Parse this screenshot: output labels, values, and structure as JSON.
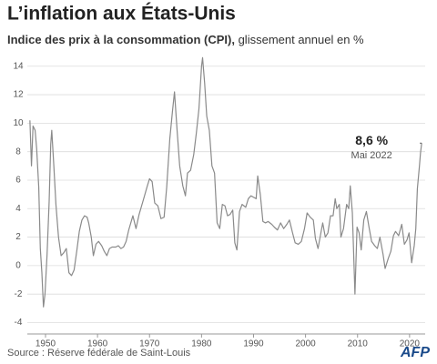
{
  "chart_data": {
    "type": "line",
    "title": "L’inflation aux États-Unis",
    "subtitle_bold": "Indice des prix à la consommation (CPI),",
    "subtitle": "glissement annuel en %",
    "source": "Source : Réserve fédérale de Saint-Louis",
    "logo": "AFP",
    "x": [
      1947.0,
      1947.3,
      1947.6,
      1948.0,
      1948.3,
      1948.7,
      1949.0,
      1949.3,
      1949.6,
      1949.9,
      1950.3,
      1950.7,
      1951.0,
      1951.2,
      1951.6,
      1952.0,
      1952.5,
      1953.0,
      1953.5,
      1954.0,
      1954.5,
      1955.0,
      1955.5,
      1956.0,
      1956.5,
      1957.0,
      1957.5,
      1958.0,
      1958.3,
      1958.8,
      1959.2,
      1959.7,
      1960.2,
      1960.8,
      1961.3,
      1961.8,
      1962.3,
      1962.8,
      1963.5,
      1964.0,
      1964.5,
      1965.0,
      1965.5,
      1966.0,
      1966.8,
      1967.4,
      1968.0,
      1968.8,
      1969.5,
      1970.0,
      1970.5,
      1971.0,
      1971.6,
      1972.2,
      1972.8,
      1973.3,
      1973.9,
      1974.4,
      1974.8,
      1975.3,
      1975.8,
      1976.4,
      1976.9,
      1977.3,
      1977.9,
      1978.5,
      1979.0,
      1979.5,
      1980.0,
      1980.2,
      1980.6,
      1981.0,
      1981.5,
      1982.0,
      1982.5,
      1983.0,
      1983.5,
      1984.0,
      1984.5,
      1985.0,
      1985.5,
      1986.0,
      1986.4,
      1986.8,
      1987.3,
      1987.8,
      1988.5,
      1989.0,
      1989.5,
      1990.0,
      1990.5,
      1990.8,
      1991.3,
      1991.8,
      1992.3,
      1992.8,
      1993.5,
      1994.0,
      1994.6,
      1995.2,
      1995.8,
      1996.4,
      1996.9,
      1997.5,
      1998.0,
      1998.6,
      1999.2,
      1999.8,
      2000.3,
      2000.9,
      2001.5,
      2001.9,
      2002.4,
      2002.9,
      2003.3,
      2003.8,
      2004.3,
      2004.8,
      2005.3,
      2005.7,
      2006.0,
      2006.5,
      2006.8,
      2007.3,
      2007.9,
      2008.3,
      2008.6,
      2009.0,
      2009.5,
      2009.9,
      2010.3,
      2010.7,
      2011.2,
      2011.7,
      2012.2,
      2012.7,
      2013.3,
      2013.8,
      2014.3,
      2014.9,
      2015.3,
      2015.9,
      2016.4,
      2016.9,
      2017.3,
      2017.9,
      2018.5,
      2019.0,
      2019.5,
      2019.9,
      2020.4,
      2020.9,
      2021.2,
      2021.5,
      2021.9,
      2022.1,
      2022.33
    ],
    "series": [
      {
        "name": "CPI",
        "color": "#8a8a8a",
        "values": [
          10.2,
          7.0,
          9.8,
          9.5,
          8.2,
          5.5,
          1.2,
          -0.5,
          -2.9,
          -2.0,
          0.8,
          4.5,
          8.5,
          9.5,
          7.0,
          4.3,
          2.0,
          0.7,
          0.9,
          1.2,
          -0.5,
          -0.7,
          -0.3,
          1.0,
          2.4,
          3.2,
          3.5,
          3.4,
          3.0,
          2.0,
          0.7,
          1.5,
          1.7,
          1.4,
          1.0,
          0.7,
          1.2,
          1.3,
          1.3,
          1.4,
          1.2,
          1.3,
          1.7,
          2.5,
          3.5,
          2.6,
          3.6,
          4.6,
          5.5,
          6.1,
          5.9,
          4.4,
          4.2,
          3.3,
          3.4,
          5.5,
          8.9,
          10.8,
          12.2,
          9.5,
          7.0,
          5.6,
          4.9,
          6.5,
          6.7,
          7.8,
          9.3,
          11.0,
          14.0,
          14.6,
          12.8,
          10.5,
          9.5,
          7.0,
          6.5,
          3.0,
          2.6,
          4.3,
          4.2,
          3.5,
          3.6,
          3.9,
          1.6,
          1.1,
          3.8,
          4.3,
          4.1,
          4.7,
          4.9,
          4.8,
          4.7,
          6.3,
          5.0,
          3.1,
          3.0,
          3.1,
          2.9,
          2.7,
          2.5,
          3.0,
          2.6,
          2.9,
          3.2,
          2.3,
          1.6,
          1.5,
          1.7,
          2.6,
          3.7,
          3.4,
          3.2,
          1.9,
          1.2,
          2.2,
          3.0,
          2.0,
          2.3,
          3.5,
          3.5,
          4.7,
          4.0,
          4.3,
          2.0,
          2.6,
          4.3,
          4.0,
          5.6,
          3.7,
          -2.0,
          2.7,
          2.3,
          1.1,
          3.2,
          3.8,
          2.7,
          1.7,
          1.4,
          1.2,
          2.0,
          0.8,
          -0.2,
          0.5,
          1.0,
          2.1,
          2.4,
          2.1,
          2.9,
          1.5,
          1.8,
          2.3,
          0.2,
          1.4,
          2.6,
          5.4,
          7.0,
          7.9,
          8.6
        ]
      }
    ],
    "annotation": {
      "label": "8,6 %",
      "sublabel": "Mai 2022",
      "x": 2022.33,
      "value": 8.6
    },
    "xlim": [
      1946.5,
      2023
    ],
    "ylim": [
      -4.8,
      15.2
    ],
    "xticks": [
      1950,
      1960,
      1970,
      1980,
      1990,
      2000,
      2010,
      2020
    ],
    "yticks": [
      -4,
      -2,
      0,
      2,
      4,
      6,
      8,
      10,
      12,
      14
    ],
    "grid": true
  }
}
